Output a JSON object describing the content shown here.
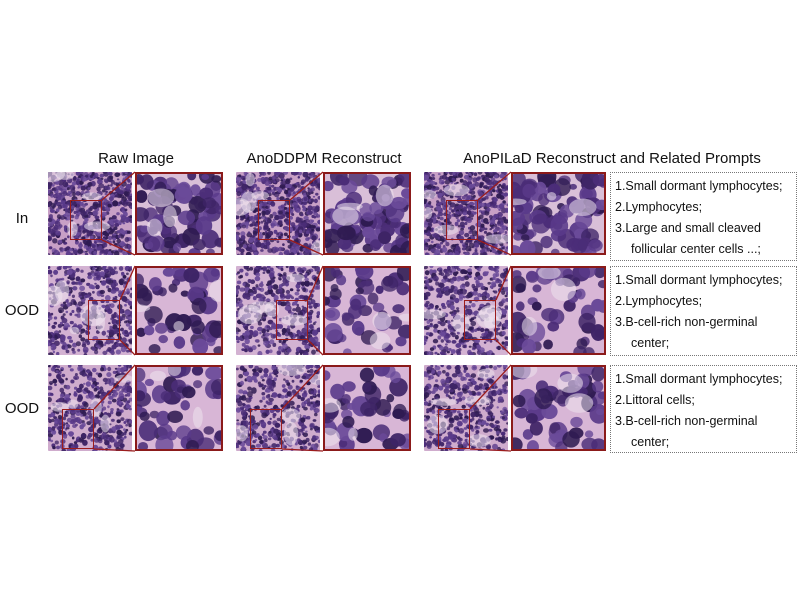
{
  "columns": {
    "raw": "Raw Image",
    "anoddpm": "AnoDDPM Reconstruct",
    "anopilad": "AnoPILaD Reconstruct and Related Prompts"
  },
  "rows": [
    {
      "label": "In",
      "prompts": [
        "1.Small dormant lymphocytes;",
        "2.Lymphocytes;",
        "3.Large and small cleaved",
        "follicular center cells ...;"
      ]
    },
    {
      "label": "OOD",
      "prompts": [
        "1.Small dormant lymphocytes;",
        "2.Lymphocytes;",
        "3.B-cell-rich non-germinal",
        "center;"
      ]
    },
    {
      "label": "OOD",
      "prompts": [
        "1.Small dormant lymphocytes;",
        "2.Littoral cells;",
        "3.B-cell-rich non-germinal",
        "center;"
      ]
    }
  ],
  "colors": {
    "highlight_box": "#9b1c1c",
    "tissue_background": "#c9a2c8",
    "nucleus": "#3e2466"
  }
}
